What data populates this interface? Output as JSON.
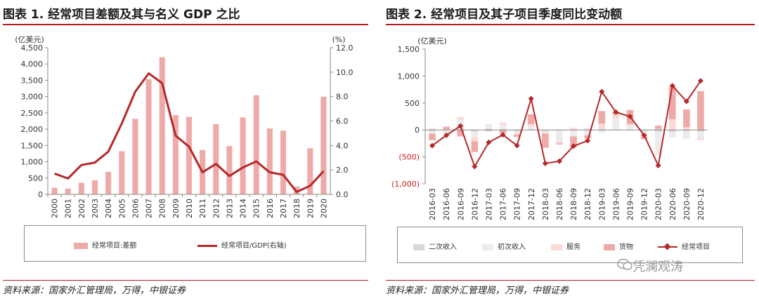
{
  "chart_data": [
    {
      "type": "bar+line",
      "title": "图表 1. 经常项目差额及其与名义 GDP 之比",
      "ylabel_left": "(亿美元)",
      "ylabel_right": "(%)",
      "categories": [
        "2000",
        "2001",
        "2002",
        "2003",
        "2004",
        "2005",
        "2006",
        "2007",
        "2008",
        "2009",
        "2010",
        "2011",
        "2012",
        "2013",
        "2014",
        "2015",
        "2016",
        "2017",
        "2018",
        "2019",
        "2020"
      ],
      "ylim_left": [
        0,
        4500
      ],
      "yticks_left": [
        "0",
        "500",
        "1,000",
        "1,500",
        "2,000",
        "2,500",
        "3,000",
        "3,500",
        "4,000",
        "4,500"
      ],
      "ylim_right": [
        0,
        12
      ],
      "yticks_right": [
        "0.0",
        "2.0",
        "4.0",
        "6.0",
        "8.0",
        "10.0",
        "12.0"
      ],
      "series": [
        {
          "name": "经常项目:差额",
          "kind": "bar",
          "axis": "left",
          "color": "#eeaaa8",
          "values": [
            205,
            174,
            354,
            431,
            689,
            1324,
            2318,
            3532,
            4206,
            2433,
            2378,
            1361,
            2154,
            1482,
            2360,
            3042,
            2022,
            1951,
            241,
            1413,
            2999
          ]
        },
        {
          "name": "经常项目/GDP(右轴)",
          "kind": "line",
          "axis": "right",
          "color": "#b5282a",
          "values": [
            1.7,
            1.3,
            2.4,
            2.6,
            3.5,
            5.8,
            8.4,
            9.9,
            9.1,
            4.8,
            3.9,
            1.8,
            2.5,
            1.5,
            2.2,
            2.7,
            1.8,
            1.6,
            0.2,
            0.7,
            1.9
          ]
        }
      ],
      "source": "资料来源：国家外汇管理局，万得，中银证券"
    },
    {
      "type": "stacked-bar+line",
      "title": "图表 2. 经常项目及其子项目季度同比变动额",
      "ylabel": "(亿美元)",
      "categories": [
        "2016-03",
        "2016-06",
        "2016-09",
        "2016-12",
        "2017-03",
        "2017-06",
        "2017-09",
        "2017-12",
        "2018-03",
        "2018-06",
        "2018-09",
        "2018-12",
        "2019-03",
        "2019-06",
        "2019-09",
        "2019-12",
        "2020-03",
        "2020-06",
        "2020-09",
        "2020-12"
      ],
      "ylim": [
        -1000,
        1500
      ],
      "yticks": [
        "1,500",
        "1,000",
        "500",
        "0",
        "(500)",
        "(1,000)"
      ],
      "ytick_values": [
        1500,
        1000,
        500,
        0,
        -500,
        -1000
      ],
      "series": [
        {
          "name": "二次收入",
          "color": "#d9d9d9",
          "values": [
            -20,
            10,
            40,
            -30,
            30,
            20,
            -20,
            10,
            -20,
            -10,
            10,
            10,
            20,
            10,
            10,
            -20,
            -30,
            -40,
            -20,
            -30
          ]
        },
        {
          "name": "初次收入",
          "color": "#ececec",
          "values": [
            -50,
            -60,
            150,
            -100,
            50,
            80,
            -50,
            60,
            -30,
            -200,
            -120,
            -100,
            -50,
            200,
            70,
            -80,
            -450,
            -100,
            -150,
            -120
          ]
        },
        {
          "name": "服务",
          "color": "#fad9d6",
          "values": [
            30,
            -20,
            50,
            -80,
            20,
            40,
            -20,
            40,
            -20,
            -40,
            30,
            20,
            100,
            80,
            30,
            -30,
            20,
            200,
            50,
            -40
          ]
        },
        {
          "name": "货物",
          "color": "#eeaaa8",
          "values": [
            -120,
            50,
            -120,
            -200,
            -20,
            -60,
            -40,
            180,
            -260,
            -20,
            -200,
            -60,
            230,
            50,
            260,
            -40,
            60,
            600,
            330,
            720
          ]
        },
        {
          "name": "经常项目",
          "kind": "line",
          "color": "#b5282a",
          "values": [
            -290,
            -100,
            75,
            -680,
            -230,
            -90,
            -290,
            580,
            -620,
            -580,
            -300,
            -200,
            710,
            330,
            250,
            -100,
            -660,
            820,
            530,
            910
          ]
        }
      ],
      "source": "资料来源：国家外汇管理局，万得，中银证券"
    }
  ],
  "watermark": {
    "text": "凭澜观涛"
  }
}
